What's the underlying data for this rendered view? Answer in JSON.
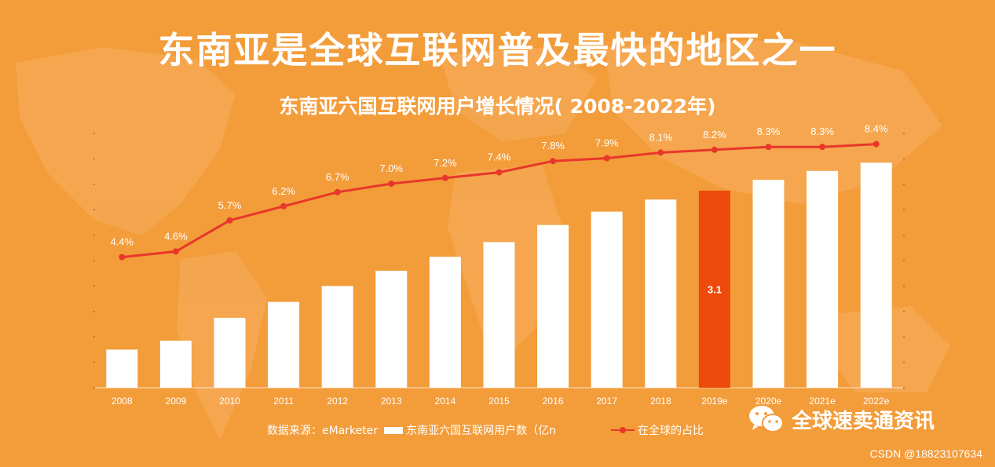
{
  "title": "东南亚是全球互联网普及最快的地区之一",
  "subtitle": "东南亚六国互联网用户增长情况( 2008-2022年)",
  "legend": {
    "source": "数据来源：eMarketer",
    "bars": "东南亚六国互联网用户数（亿n",
    "line": "在全球的占比"
  },
  "brand": {
    "name": "全球速卖通资讯",
    "icon": "wechat-icon"
  },
  "credit": "CSDN @18823107634",
  "colors": {
    "background": "#F39C3A",
    "bar": "#FFFFFF",
    "highlight_bar": "#EE4A0C",
    "line": "#E8372A"
  },
  "chart_data": {
    "type": "bar",
    "categories": [
      "2008",
      "2009",
      "2010",
      "2011",
      "2012",
      "2013",
      "2014",
      "2015",
      "2016",
      "2017",
      "2018",
      "2019e",
      "2020e",
      "2021e",
      "2022e"
    ],
    "series": [
      {
        "name": "东南亚六国互联网用户数（亿n",
        "type": "bar",
        "values": [
          0.6,
          0.74,
          1.1,
          1.35,
          1.6,
          1.84,
          2.06,
          2.29,
          2.56,
          2.77,
          2.96,
          3.1,
          3.27,
          3.41,
          3.54
        ],
        "highlight_index": 11,
        "data_labels": {
          "11": "3.1"
        }
      },
      {
        "name": "在全球的占比",
        "type": "line",
        "values": [
          4.4,
          4.6,
          5.7,
          6.2,
          6.7,
          7.0,
          7.2,
          7.4,
          7.8,
          7.9,
          8.1,
          8.2,
          8.3,
          8.3,
          8.4
        ],
        "point_labels": [
          "4.4%",
          "4.6%",
          "5.7%",
          "6.2%",
          "6.7%",
          "7.0%",
          "7.2%",
          "7.4%",
          "7.8%",
          "7.9%",
          "8.1%",
          "8.2%",
          "8.3%",
          "8.3%",
          "8.4%"
        ]
      }
    ],
    "ylim": [
      0,
      4
    ],
    "y2lim": [
      0,
      9
    ]
  }
}
